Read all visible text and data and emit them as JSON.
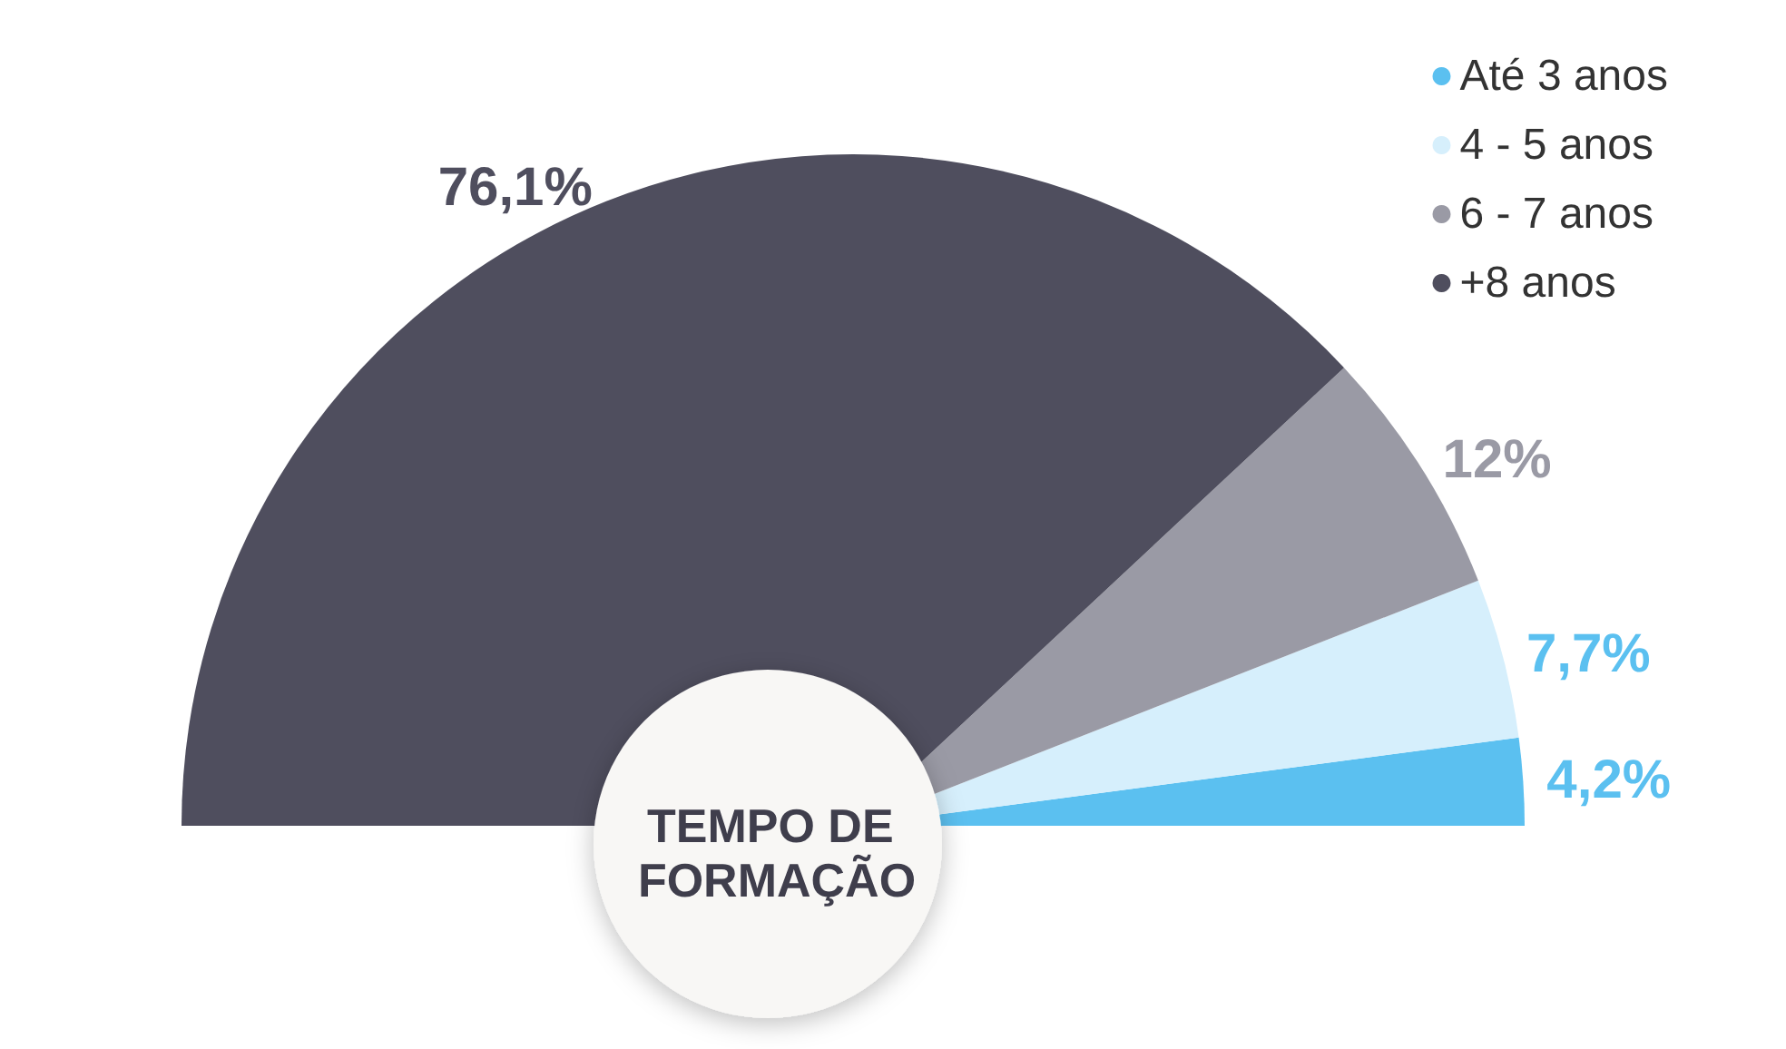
{
  "chart_data": {
    "type": "pie",
    "title": "TEMPO DE FORMAÇÃO",
    "categories": [
      "Até 3 anos",
      "4 - 5 anos",
      "6 - 7 anos",
      "+8 anos"
    ],
    "values": [
      4.2,
      7.7,
      12,
      76.1
    ],
    "value_labels": [
      "4,2%",
      "7,7%",
      "12%",
      "76,1%"
    ],
    "colors": [
      "#5bc0f0",
      "#d6effc",
      "#9a9aa5",
      "#4f4e5e"
    ],
    "legend": "top right"
  }
}
